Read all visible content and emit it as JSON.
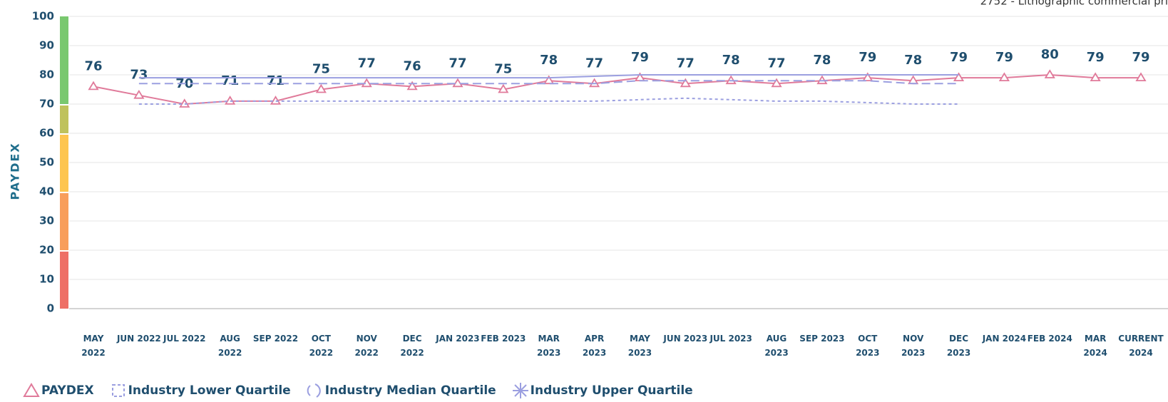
{
  "chart_data": {
    "type": "line",
    "subtitle": "2752 - Lithographic commercial pri",
    "ylabel": "PAYDEX",
    "categories": [
      "MAY 2022",
      "JUN 2022",
      "JUL 2022",
      "AUG 2022",
      "SEP 2022",
      "OCT 2022",
      "NOV 2022",
      "DEC 2022",
      "JAN 2023",
      "FEB 2023",
      "MAR 2023",
      "APR 2023",
      "MAY 2023",
      "JUN 2023",
      "JUL 2023",
      "AUG 2023",
      "SEP 2023",
      "OCT 2023",
      "NOV 2023",
      "DEC 2023",
      "JAN 2024",
      "FEB 2024",
      "MAR 2024",
      "CURRENT 2024"
    ],
    "series": [
      {
        "name": "PAYDEX",
        "color": "#e07a9a",
        "marker": "triangle",
        "style": "solid",
        "labels": true,
        "values": [
          76,
          73,
          70,
          71,
          71,
          75,
          77,
          76,
          77,
          75,
          78,
          77,
          79,
          77,
          78,
          77,
          78,
          79,
          78,
          79,
          79,
          80,
          79,
          79
        ]
      },
      {
        "name": "Industry Lower Quartile",
        "color": "#9b9fe0",
        "marker": "square",
        "style": "dotted",
        "values": [
          null,
          70,
          70,
          71,
          71,
          71,
          71,
          71,
          71,
          71,
          71,
          71,
          71.5,
          72,
          71.5,
          71,
          71,
          70.5,
          70,
          70,
          null,
          null,
          null,
          null
        ]
      },
      {
        "name": "Industry Median Quartile",
        "color": "#9b9fe0",
        "marker": "arc",
        "style": "dashed",
        "values": [
          null,
          77,
          77,
          77,
          77,
          77,
          77,
          77,
          77,
          77,
          77,
          77,
          78,
          78,
          78,
          78,
          78,
          78,
          77,
          77,
          null,
          null,
          null,
          null
        ]
      },
      {
        "name": "Industry Upper Quartile",
        "color": "#9b9fe0",
        "marker": "asterisk",
        "style": "solid",
        "values": [
          null,
          79,
          79,
          79,
          79,
          79,
          79,
          79,
          79,
          79,
          79,
          79.5,
          80,
          80,
          80,
          80,
          80,
          80,
          80,
          80,
          null,
          null,
          null,
          null
        ]
      }
    ],
    "bands": [
      {
        "from": 70,
        "to": 100,
        "color": "#79c86f"
      },
      {
        "from": 60,
        "to": 70,
        "color": "#bfc25c"
      },
      {
        "from": 40,
        "to": 60,
        "color": "#fdc54f"
      },
      {
        "from": 20,
        "to": 40,
        "color": "#f89e5b"
      },
      {
        "from": 0,
        "to": 20,
        "color": "#ee6f66"
      }
    ],
    "ylim": [
      0,
      100
    ],
    "yticks": [
      0,
      10,
      20,
      30,
      40,
      50,
      60,
      70,
      80,
      90,
      100
    ],
    "grid": true
  }
}
